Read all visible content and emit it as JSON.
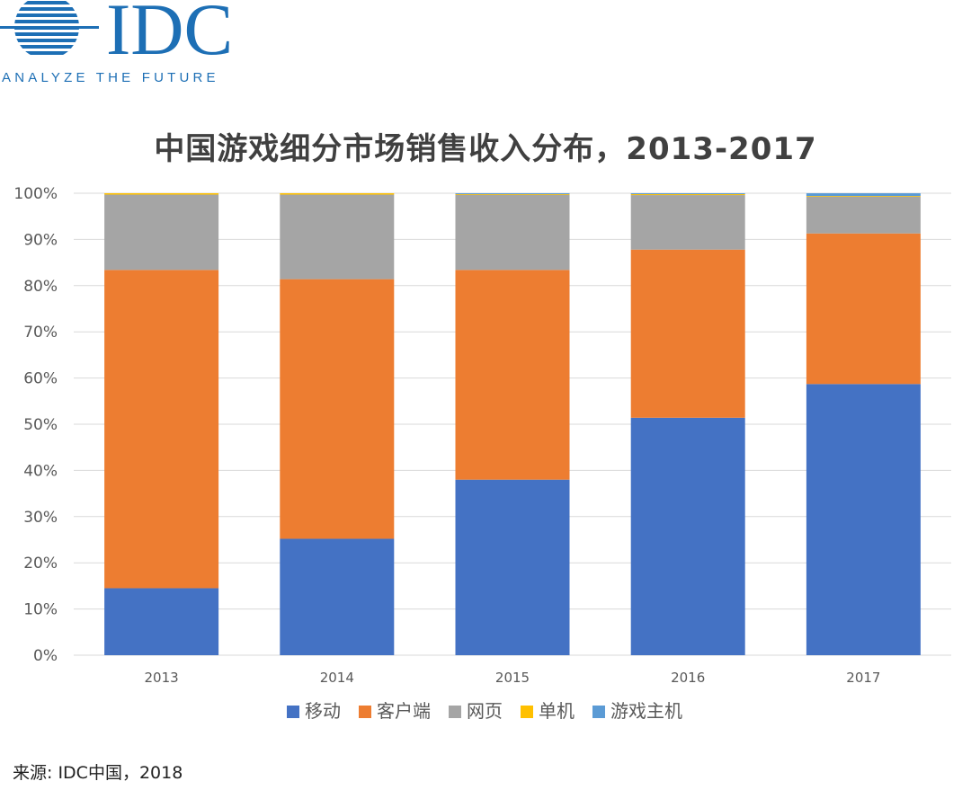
{
  "logo": {
    "name": "IDC",
    "tagline": "ANALYZE THE FUTURE"
  },
  "colors": {
    "logo": "#1d6fb5",
    "grid": "#d9d9d9",
    "axis_text": "#595959"
  },
  "chart_data": {
    "type": "bar",
    "stacked": true,
    "title": "中国游戏细分市场销售收入分布，2013-2017",
    "xlabel": "",
    "ylabel": "",
    "ylim": [
      0,
      100
    ],
    "y_ticks": [
      "0%",
      "10%",
      "20%",
      "30%",
      "40%",
      "50%",
      "60%",
      "70%",
      "80%",
      "90%",
      "100%"
    ],
    "categories": [
      "2013",
      "2014",
      "2015",
      "2016",
      "2017"
    ],
    "series": [
      {
        "name": "移动",
        "color": "#4472c4",
        "values": [
          14.5,
          25.2,
          38.0,
          51.4,
          58.7
        ]
      },
      {
        "name": "客户端",
        "color": "#ed7d31",
        "values": [
          68.9,
          56.2,
          45.4,
          36.4,
          32.6
        ]
      },
      {
        "name": "网页",
        "color": "#a5a5a5",
        "values": [
          16.3,
          18.3,
          16.3,
          11.8,
          8.0
        ]
      },
      {
        "name": "单机",
        "color": "#ffc000",
        "values": [
          0.3,
          0.3,
          0.1,
          0.2,
          0.1
        ]
      },
      {
        "name": "游戏主机",
        "color": "#5b9bd5",
        "values": [
          0.0,
          0.0,
          0.2,
          0.2,
          0.6
        ]
      }
    ],
    "legend_position": "bottom"
  },
  "source": "来源: IDC中国，2018"
}
